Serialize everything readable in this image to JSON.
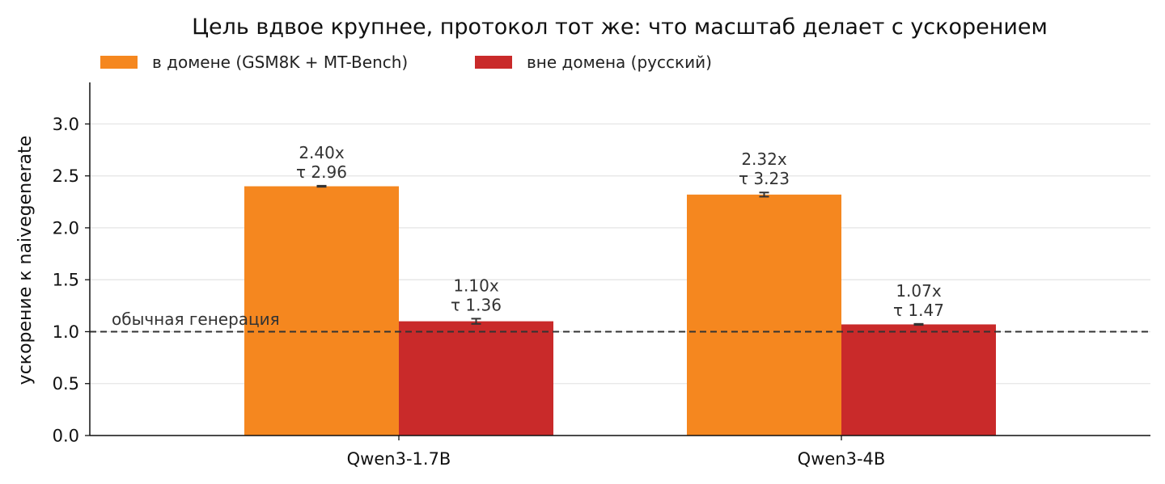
{
  "chart_data": {
    "type": "bar",
    "title": "Цель вдвое крупнее, протокол тот же: что масштаб делает с ускорением",
    "xlabel": "",
    "ylabel": "ускорение к naivegenerate",
    "categories": [
      "Qwen3-1.7B",
      "Qwen3-4B"
    ],
    "ylim": [
      0,
      3.4
    ],
    "yticks": [
      0.0,
      0.5,
      1.0,
      1.5,
      2.0,
      2.5,
      3.0
    ],
    "ytick_labels": [
      "0.0",
      "0.5",
      "1.0",
      "1.5",
      "2.0",
      "2.5",
      "3.0"
    ],
    "grid": true,
    "legend_placement": "top-left",
    "series": [
      {
        "name": "в домене (GSM8K + MT-Bench)",
        "color": "#f5871f",
        "values": [
          2.4,
          2.32
        ],
        "errors": [
          0.005,
          0.02
        ],
        "labels": [
          [
            "2.40x",
            "τ 2.96"
          ],
          [
            "2.32x",
            "τ 3.23"
          ]
        ]
      },
      {
        "name": "вне домена (русский)",
        "color": "#c92a2a",
        "values": [
          1.1,
          1.07
        ],
        "errors": [
          0.025,
          0.005
        ],
        "labels": [
          [
            "1.10x",
            "τ 1.36"
          ],
          [
            "1.07x",
            "τ 1.47"
          ]
        ]
      }
    ],
    "reference_line": {
      "y": 1.0,
      "style": "dashed",
      "label": "обычная генерация"
    }
  }
}
